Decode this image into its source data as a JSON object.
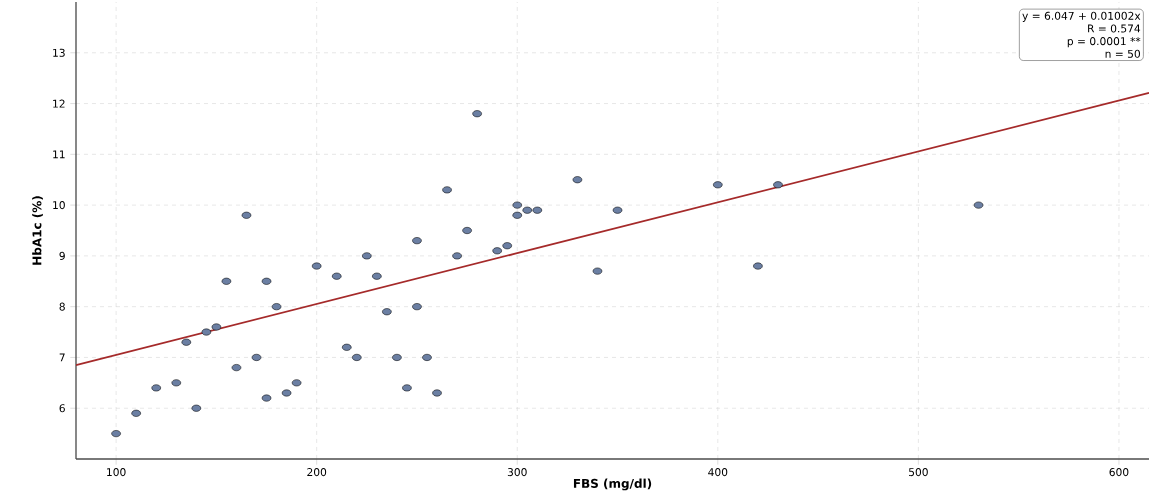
{
  "chart_data": {
    "type": "scatter",
    "xlabel": "FBS (mg/dl)",
    "ylabel": "HbA1c (%)",
    "xlim": [
      80,
      615
    ],
    "ylim": [
      5,
      14
    ],
    "xticks": [
      100,
      200,
      300,
      400,
      500,
      600
    ],
    "yticks": [
      6,
      7,
      8,
      9,
      10,
      11,
      12,
      13
    ],
    "grid": true,
    "annotations": [
      "y = 6.047 + 0.01002x",
      "R = 0.574",
      "p = 0.0001 **",
      "n = 50"
    ],
    "series": [
      {
        "marker": "circle",
        "color": "#6b7fa3",
        "x": [
          100,
          110,
          120,
          130,
          135,
          140,
          145,
          150,
          155,
          160,
          165,
          170,
          175,
          175,
          180,
          185,
          190,
          200,
          210,
          215,
          220,
          225,
          230,
          235,
          240,
          245,
          250,
          250,
          255,
          260,
          265,
          270,
          275,
          280,
          290,
          295,
          300,
          300,
          305,
          310,
          330,
          340,
          350,
          400,
          420,
          430,
          530
        ],
        "values": [
          5.5,
          5.9,
          6.4,
          6.5,
          7.3,
          6.0,
          7.5,
          7.6,
          8.5,
          6.8,
          9.8,
          7.0,
          8.5,
          6.2,
          8.0,
          6.3,
          6.5,
          8.8,
          8.6,
          7.2,
          7.0,
          9.0,
          8.6,
          7.9,
          7.0,
          6.4,
          9.3,
          8.0,
          7.0,
          6.3,
          10.3,
          9.0,
          9.5,
          11.8,
          9.1,
          9.2,
          10.0,
          9.8,
          9.9,
          9.9,
          10.5,
          8.7,
          9.9,
          10.4,
          8.8,
          10.4,
          10.0
        ]
      },
      {
        "type": "line",
        "marker": "none",
        "color": "#a52a2a",
        "x": [
          80,
          615
        ],
        "values": [
          6.85,
          12.21
        ]
      }
    ]
  }
}
